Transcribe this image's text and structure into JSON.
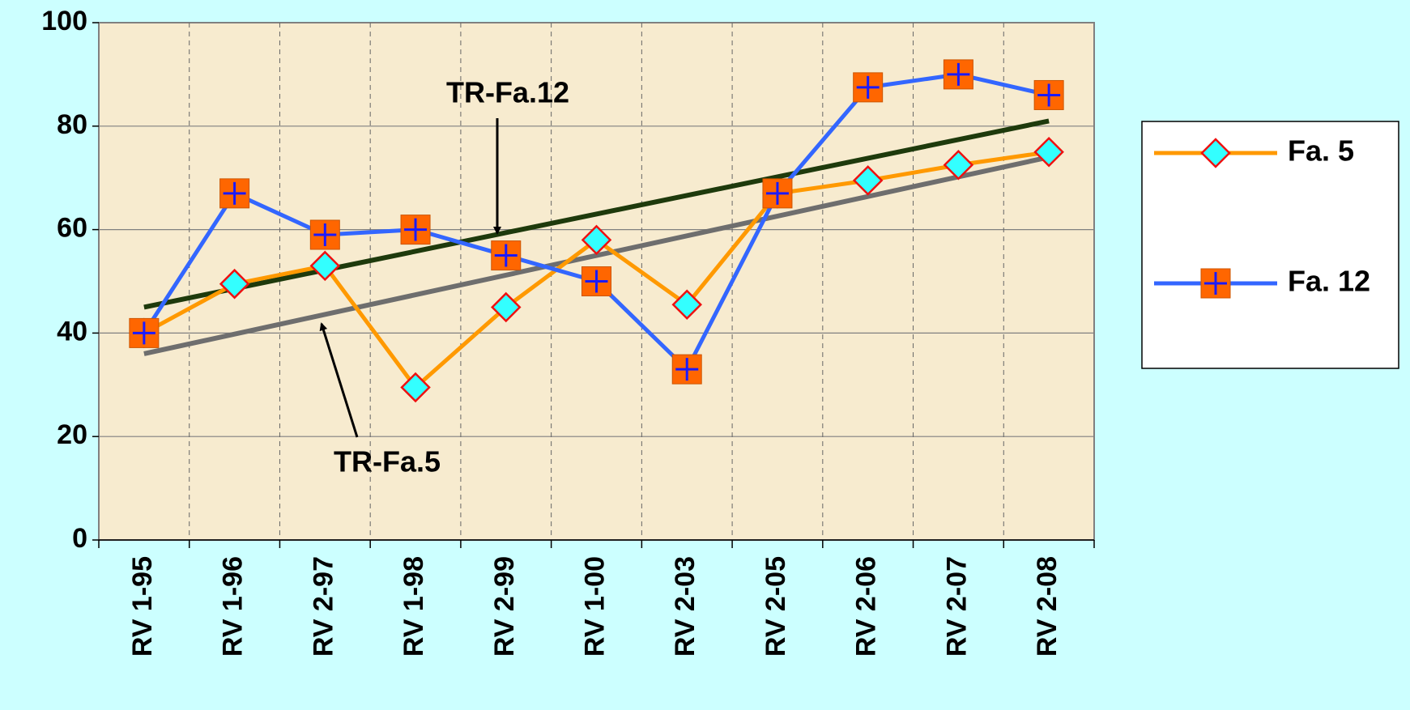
{
  "chart_data": {
    "type": "line",
    "categories": [
      "RV 1-95",
      "RV 1-96",
      "RV 2-97",
      "RV 1-98",
      "RV 2-99",
      "RV 1-00",
      "RV 2-03",
      "RV 2-05",
      "RV 2-06",
      "RV 2-07",
      "RV 2-08"
    ],
    "series": [
      {
        "name": "Fa. 5",
        "color": "#ff9900",
        "values": [
          40,
          49.5,
          53,
          29.5,
          45,
          58,
          45.5,
          67,
          69.5,
          72.5,
          75
        ]
      },
      {
        "name": "Fa. 12",
        "color": "#3366ff",
        "values": [
          40,
          67,
          59,
          60,
          55,
          50,
          33,
          67,
          87.5,
          90,
          86
        ]
      }
    ],
    "trendlines": [
      {
        "name": "TR-Fa.12",
        "color": "#1e3a0c",
        "values": [
          45,
          81
        ]
      },
      {
        "name": "TR-Fa.5",
        "color": "#6e6e6e",
        "values": [
          36,
          74
        ]
      }
    ],
    "ylim": [
      0,
      100
    ],
    "yticks": [
      0,
      20,
      40,
      60,
      80,
      100
    ],
    "grid": true,
    "legend": "right"
  }
}
